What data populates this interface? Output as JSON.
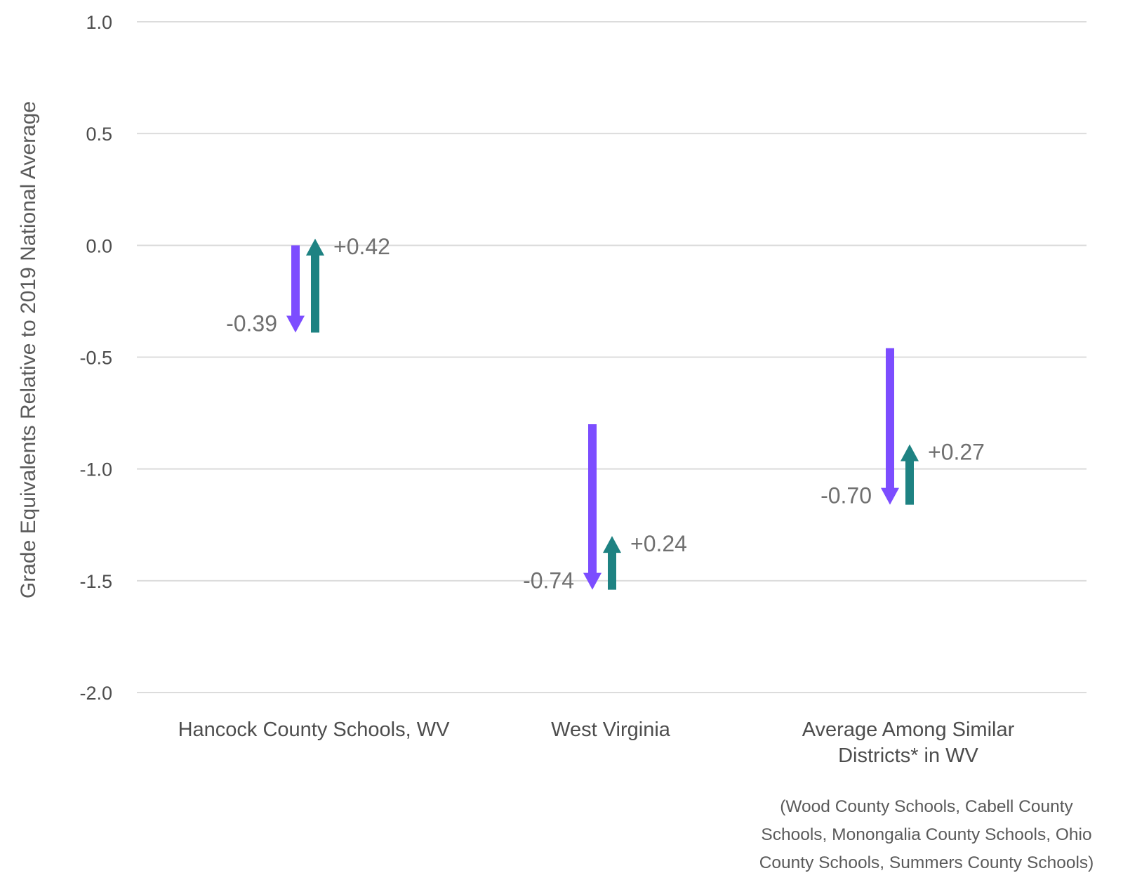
{
  "chart_data": {
    "type": "arrow-change",
    "ylabel": "Grade Equivalents Relative to 2019 National Average",
    "ylim": [
      -2.0,
      1.0
    ],
    "yticks": [
      1.0,
      0.5,
      0.0,
      -0.5,
      -1.0,
      -1.5,
      -2.0
    ],
    "ytick_labels": [
      "1.0",
      "0.5",
      "0.0",
      "-0.5",
      "-1.0",
      "-1.5",
      "-2.0"
    ],
    "grid": true,
    "colors": {
      "decline": "#7c4dff",
      "recovery": "#1e8282"
    },
    "categories": [
      {
        "label_lines": [
          "Hancock County Schools, WV"
        ],
        "start": 0.0,
        "decline": -0.39,
        "decline_label": "-0.39",
        "recovery": 0.42,
        "recovery_label": "+0.42"
      },
      {
        "label_lines": [
          "West Virginia"
        ],
        "start": -0.8,
        "decline": -0.74,
        "decline_label": "-0.74",
        "recovery": 0.24,
        "recovery_label": "+0.24"
      },
      {
        "label_lines": [
          "Average Among Similar",
          "Districts* in WV"
        ],
        "start": -0.46,
        "decline": -0.7,
        "decline_label": "-0.70",
        "recovery": 0.27,
        "recovery_label": "+0.27"
      }
    ],
    "footnote_lines": [
      "(Wood County Schools, Cabell County",
      "Schools, Monongalia County Schools, Ohio",
      "County Schools, Summers County Schools)"
    ]
  }
}
